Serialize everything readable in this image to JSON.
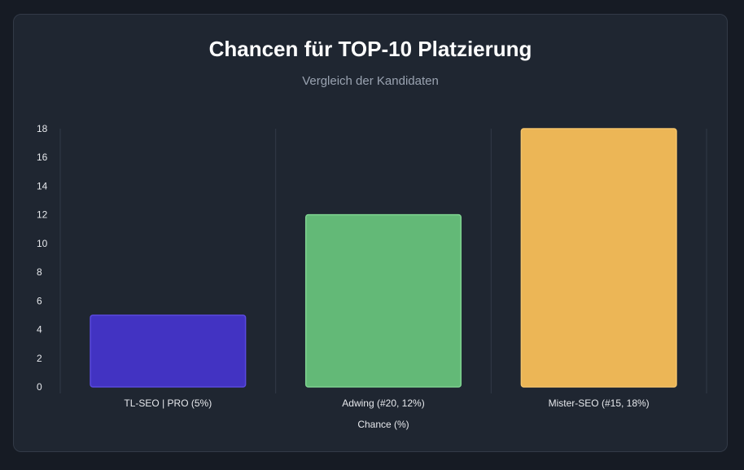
{
  "chart_data": {
    "type": "bar",
    "title": "Chancen für TOP-10 Platzierung",
    "subtitle": "Vergleich der Kandidaten",
    "categories": [
      "TL-SEO | PRO (5%)",
      "Adwing (#20, 12%)",
      "Mister-SEO (#15, 18%)"
    ],
    "values": [
      5,
      12,
      18
    ],
    "colors": [
      "#4233c2",
      "#63b977",
      "#ecb656"
    ],
    "border_colors": [
      "#5a49e0",
      "#7fd391",
      "#f5c46a"
    ],
    "xlabel": "Chance (%)",
    "ylabel": "",
    "ylim": [
      0,
      18
    ],
    "yticks": [
      0,
      2,
      4,
      6,
      8,
      10,
      12,
      14,
      16,
      18
    ],
    "grid": "vertical category dividers",
    "legend": "none"
  },
  "theme": {
    "background": "#161b24",
    "card": "#1f2631",
    "grid": "#323a47",
    "text": "#e6e8ec",
    "subtitle": "#9aa3b1"
  }
}
